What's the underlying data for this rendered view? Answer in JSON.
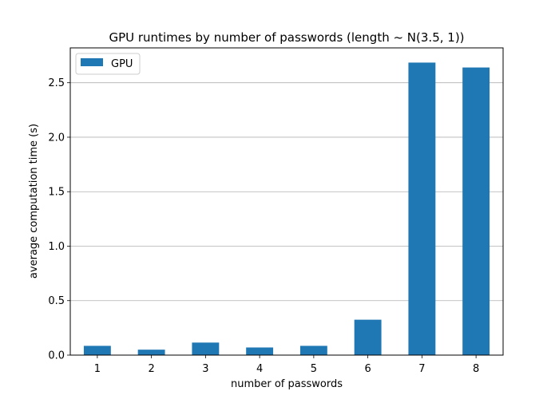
{
  "chart_data": {
    "type": "bar",
    "title": "GPU runtimes by number of passwords (length ~ N(3.5, 1))",
    "xlabel": "number of passwords",
    "ylabel": "average computation time (s)",
    "categories": [
      "1",
      "2",
      "3",
      "4",
      "5",
      "6",
      "7",
      "8"
    ],
    "series": [
      {
        "name": "GPU",
        "color": "#1f77b4",
        "values": [
          0.085,
          0.05,
          0.115,
          0.07,
          0.085,
          0.325,
          2.685,
          2.64
        ]
      }
    ],
    "ylim": [
      0,
      2.82
    ],
    "yticks": [
      0.0,
      0.5,
      1.0,
      1.5,
      2.0,
      2.5
    ],
    "ytick_labels": [
      "0.0",
      "0.5",
      "1.0",
      "1.5",
      "2.0",
      "2.5"
    ],
    "grid": "y",
    "legend_position": "top-left"
  }
}
